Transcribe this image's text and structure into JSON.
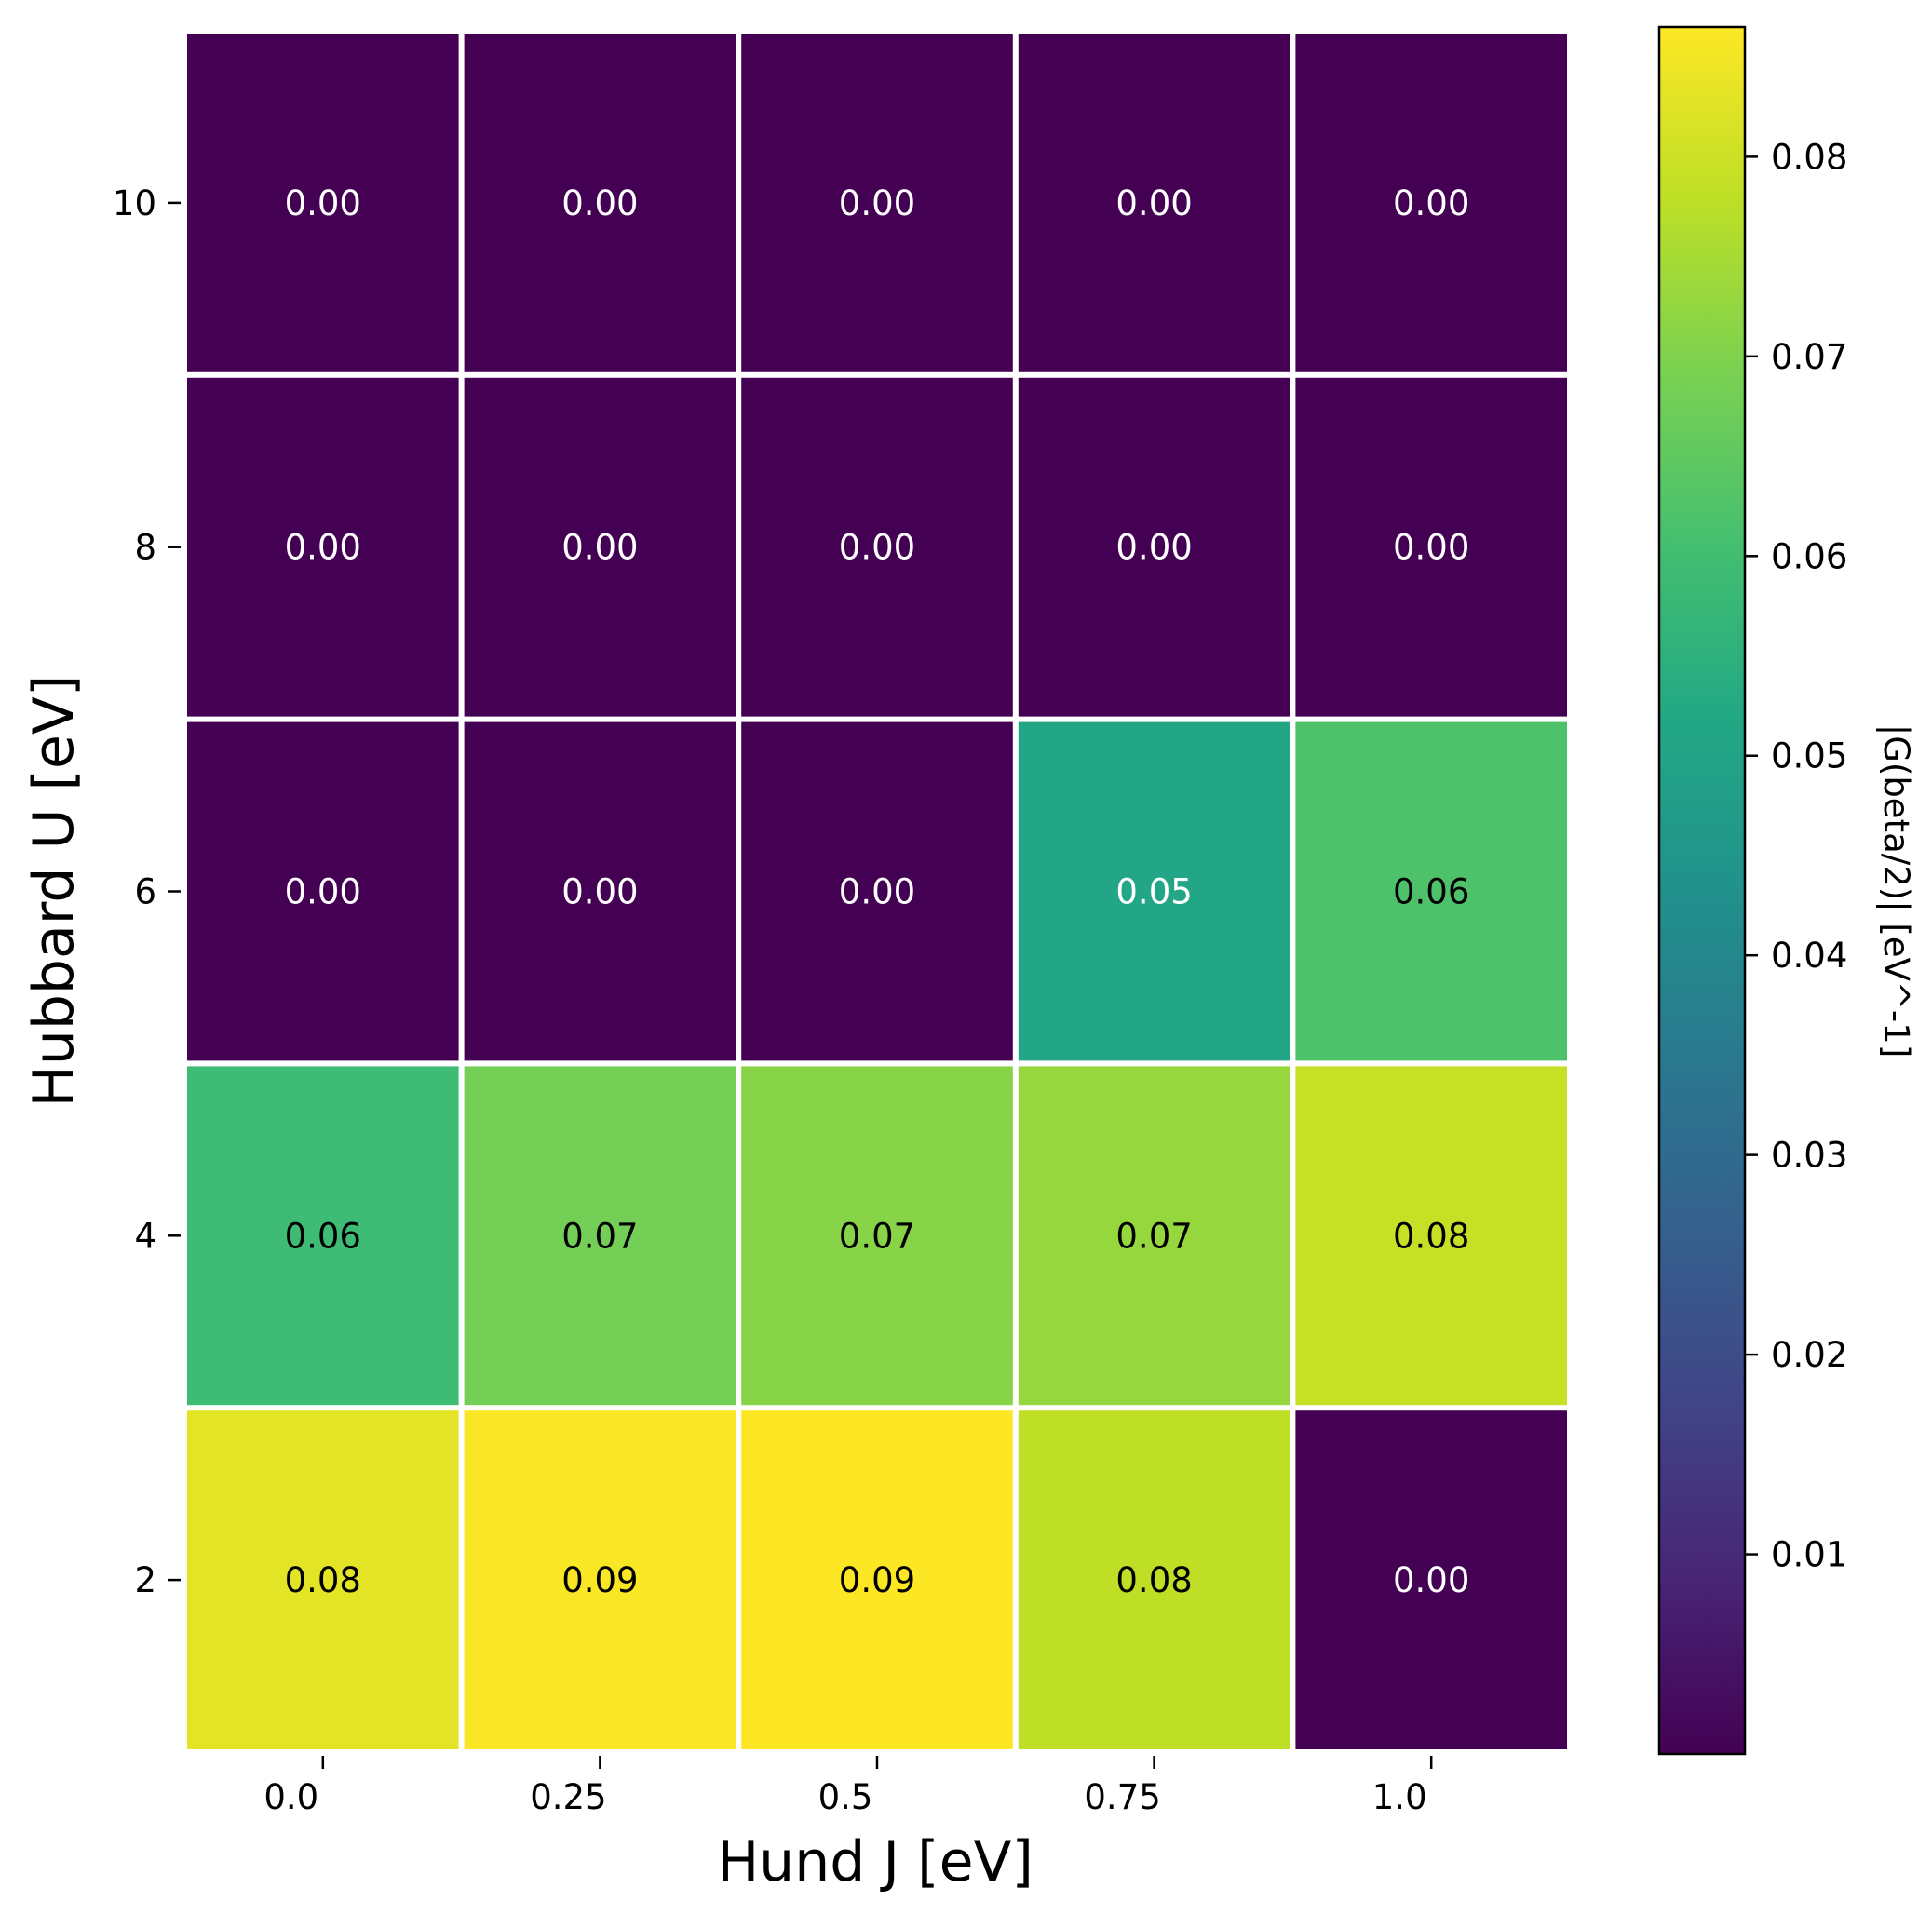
{
  "chart_data": {
    "type": "heatmap",
    "xlabel": "Hund J [eV]",
    "ylabel": "Hubbard U [eV]",
    "x_categories": [
      "0.0",
      "0.25",
      "0.5",
      "0.75",
      "1.0"
    ],
    "y_categories": [
      "10",
      "8",
      "6",
      "4",
      "2"
    ],
    "values": [
      [
        0.0,
        0.0,
        0.0,
        0.0,
        0.0
      ],
      [
        0.0,
        0.0,
        0.0,
        0.0,
        0.0
      ],
      [
        0.0,
        0.0,
        0.0,
        0.051,
        0.062
      ],
      [
        0.059,
        0.068,
        0.071,
        0.073,
        0.079
      ],
      [
        0.083,
        0.086,
        0.087,
        0.078,
        0.0
      ]
    ],
    "cell_labels": [
      [
        "0.00",
        "0.00",
        "0.00",
        "0.00",
        "0.00"
      ],
      [
        "0.00",
        "0.00",
        "0.00",
        "0.00",
        "0.00"
      ],
      [
        "0.00",
        "0.00",
        "0.00",
        "0.05",
        "0.06"
      ],
      [
        "0.06",
        "0.07",
        "0.07",
        "0.07",
        "0.08"
      ],
      [
        "0.08",
        "0.09",
        "0.09",
        "0.08",
        "0.00"
      ]
    ],
    "colorbar": {
      "label": "|G(beta/2)| [eV^-1]",
      "colormap": "viridis",
      "range": [
        0.0,
        0.0865
      ],
      "ticks": [
        "0.01",
        "0.02",
        "0.03",
        "0.04",
        "0.05",
        "0.06",
        "0.07",
        "0.08"
      ]
    },
    "grid": false
  }
}
